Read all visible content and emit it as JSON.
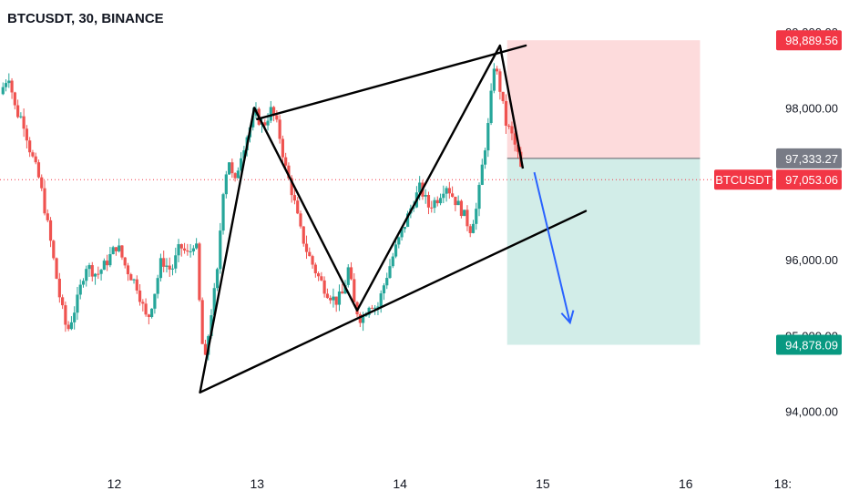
{
  "header": {
    "title": "BTCUSDT, 30, BINANCE"
  },
  "colors": {
    "up": "#26a69a",
    "down": "#ef5350",
    "stop_zone": "rgba(247,124,128,0.28)",
    "target_zone": "rgba(8,153,129,0.18)",
    "entry_tag": "#787b86",
    "stop_tag": "#f23645",
    "target_tag": "#089981",
    "current_tag": "#f23645",
    "arrow": "#2962ff",
    "drawing": "#000000"
  },
  "chart_data": {
    "type": "candlestick",
    "symbol": "BTCUSDT",
    "interval": "30",
    "exchange": "BINANCE",
    "ylim": [
      93300,
      99420
    ],
    "y_ticks": [
      {
        "value": 94000,
        "label": "94,000.00"
      },
      {
        "value": 95000,
        "label": "95,000.00"
      },
      {
        "value": 96000,
        "label": "96,000.00"
      },
      {
        "value": 98000,
        "label": "98,000.00"
      },
      {
        "value": 99000,
        "label": "99,000.00"
      }
    ],
    "x_range": [
      11.2,
      16.62
    ],
    "x_ticks": [
      {
        "value": 12,
        "label": "12"
      },
      {
        "value": 13,
        "label": "13"
      },
      {
        "value": 14,
        "label": "14"
      },
      {
        "value": 15,
        "label": "15"
      },
      {
        "value": 16,
        "label": "16"
      },
      {
        "value": 16.68,
        "label": "18:"
      }
    ],
    "price_path": [
      [
        11.2,
        98180
      ],
      [
        11.26,
        98450
      ],
      [
        11.31,
        97950
      ],
      [
        11.36,
        97850
      ],
      [
        11.41,
        97450
      ],
      [
        11.48,
        97020
      ],
      [
        11.55,
        96280
      ],
      [
        11.62,
        95480
      ],
      [
        11.67,
        95040
      ],
      [
        11.74,
        95450
      ],
      [
        11.8,
        95930
      ],
      [
        11.88,
        95800
      ],
      [
        11.94,
        95950
      ],
      [
        12.02,
        96200
      ],
      [
        12.08,
        95900
      ],
      [
        12.16,
        95650
      ],
      [
        12.23,
        95180
      ],
      [
        12.28,
        95550
      ],
      [
        12.33,
        96000
      ],
      [
        12.4,
        95850
      ],
      [
        12.46,
        96180
      ],
      [
        12.52,
        96050
      ],
      [
        12.57,
        96300
      ],
      [
        12.6,
        95300
      ],
      [
        12.63,
        94550
      ],
      [
        12.67,
        95200
      ],
      [
        12.72,
        95800
      ],
      [
        12.76,
        96900
      ],
      [
        12.8,
        97350
      ],
      [
        12.84,
        96950
      ],
      [
        12.88,
        97350
      ],
      [
        12.94,
        97700
      ],
      [
        12.99,
        97920
      ],
      [
        13.04,
        97750
      ],
      [
        13.1,
        97980
      ],
      [
        13.15,
        97700
      ],
      [
        13.2,
        97200
      ],
      [
        13.25,
        96850
      ],
      [
        13.3,
        96400
      ],
      [
        13.35,
        96100
      ],
      [
        13.42,
        95800
      ],
      [
        13.48,
        95600
      ],
      [
        13.55,
        95450
      ],
      [
        13.6,
        95550
      ],
      [
        13.64,
        95900
      ],
      [
        13.68,
        95400
      ],
      [
        13.73,
        95200
      ],
      [
        13.79,
        95450
      ],
      [
        13.84,
        95350
      ],
      [
        13.9,
        95750
      ],
      [
        13.96,
        96100
      ],
      [
        14.02,
        96400
      ],
      [
        14.08,
        96700
      ],
      [
        14.14,
        96950
      ],
      [
        14.2,
        96700
      ],
      [
        14.26,
        96800
      ],
      [
        14.32,
        97000
      ],
      [
        14.38,
        96800
      ],
      [
        14.44,
        96620
      ],
      [
        14.49,
        96400
      ],
      [
        14.54,
        96700
      ],
      [
        14.58,
        97300
      ],
      [
        14.62,
        97800
      ],
      [
        14.66,
        98600
      ],
      [
        14.7,
        98250
      ],
      [
        14.74,
        97800
      ],
      [
        14.78,
        97650
      ],
      [
        14.83,
        97350
      ],
      [
        14.86,
        97053
      ]
    ],
    "annotations": {
      "wedge_upper": [
        [
          13.0,
          97850
        ],
        [
          14.88,
          98820
        ]
      ],
      "wedge_lower": [
        [
          12.6,
          94250
        ],
        [
          15.3,
          96640
        ]
      ],
      "zigzag": [
        [
          12.6,
          94250
        ],
        [
          12.98,
          98000
        ],
        [
          13.7,
          95330
        ],
        [
          14.7,
          98820
        ],
        [
          14.86,
          97200
        ]
      ],
      "projection_arrow": [
        [
          14.94,
          97150
        ],
        [
          15.19,
          95170
        ]
      ],
      "stop_zone": {
        "x": [
          14.75,
          16.1
        ],
        "y": [
          97333.27,
          98889.56
        ]
      },
      "target_zone": {
        "x": [
          14.75,
          16.1
        ],
        "y": [
          94878.09,
          97333.27
        ]
      }
    },
    "price_tags": {
      "stop": {
        "value": 98889.56,
        "label": "98,889.56"
      },
      "entry": {
        "value": 97333.27,
        "label": "97,333.27"
      },
      "current": {
        "value": 97053.06,
        "label": "97,053.06",
        "symbol": "BTCUSDT"
      },
      "target": {
        "value": 94878.09,
        "label": "94,878.09"
      }
    }
  }
}
